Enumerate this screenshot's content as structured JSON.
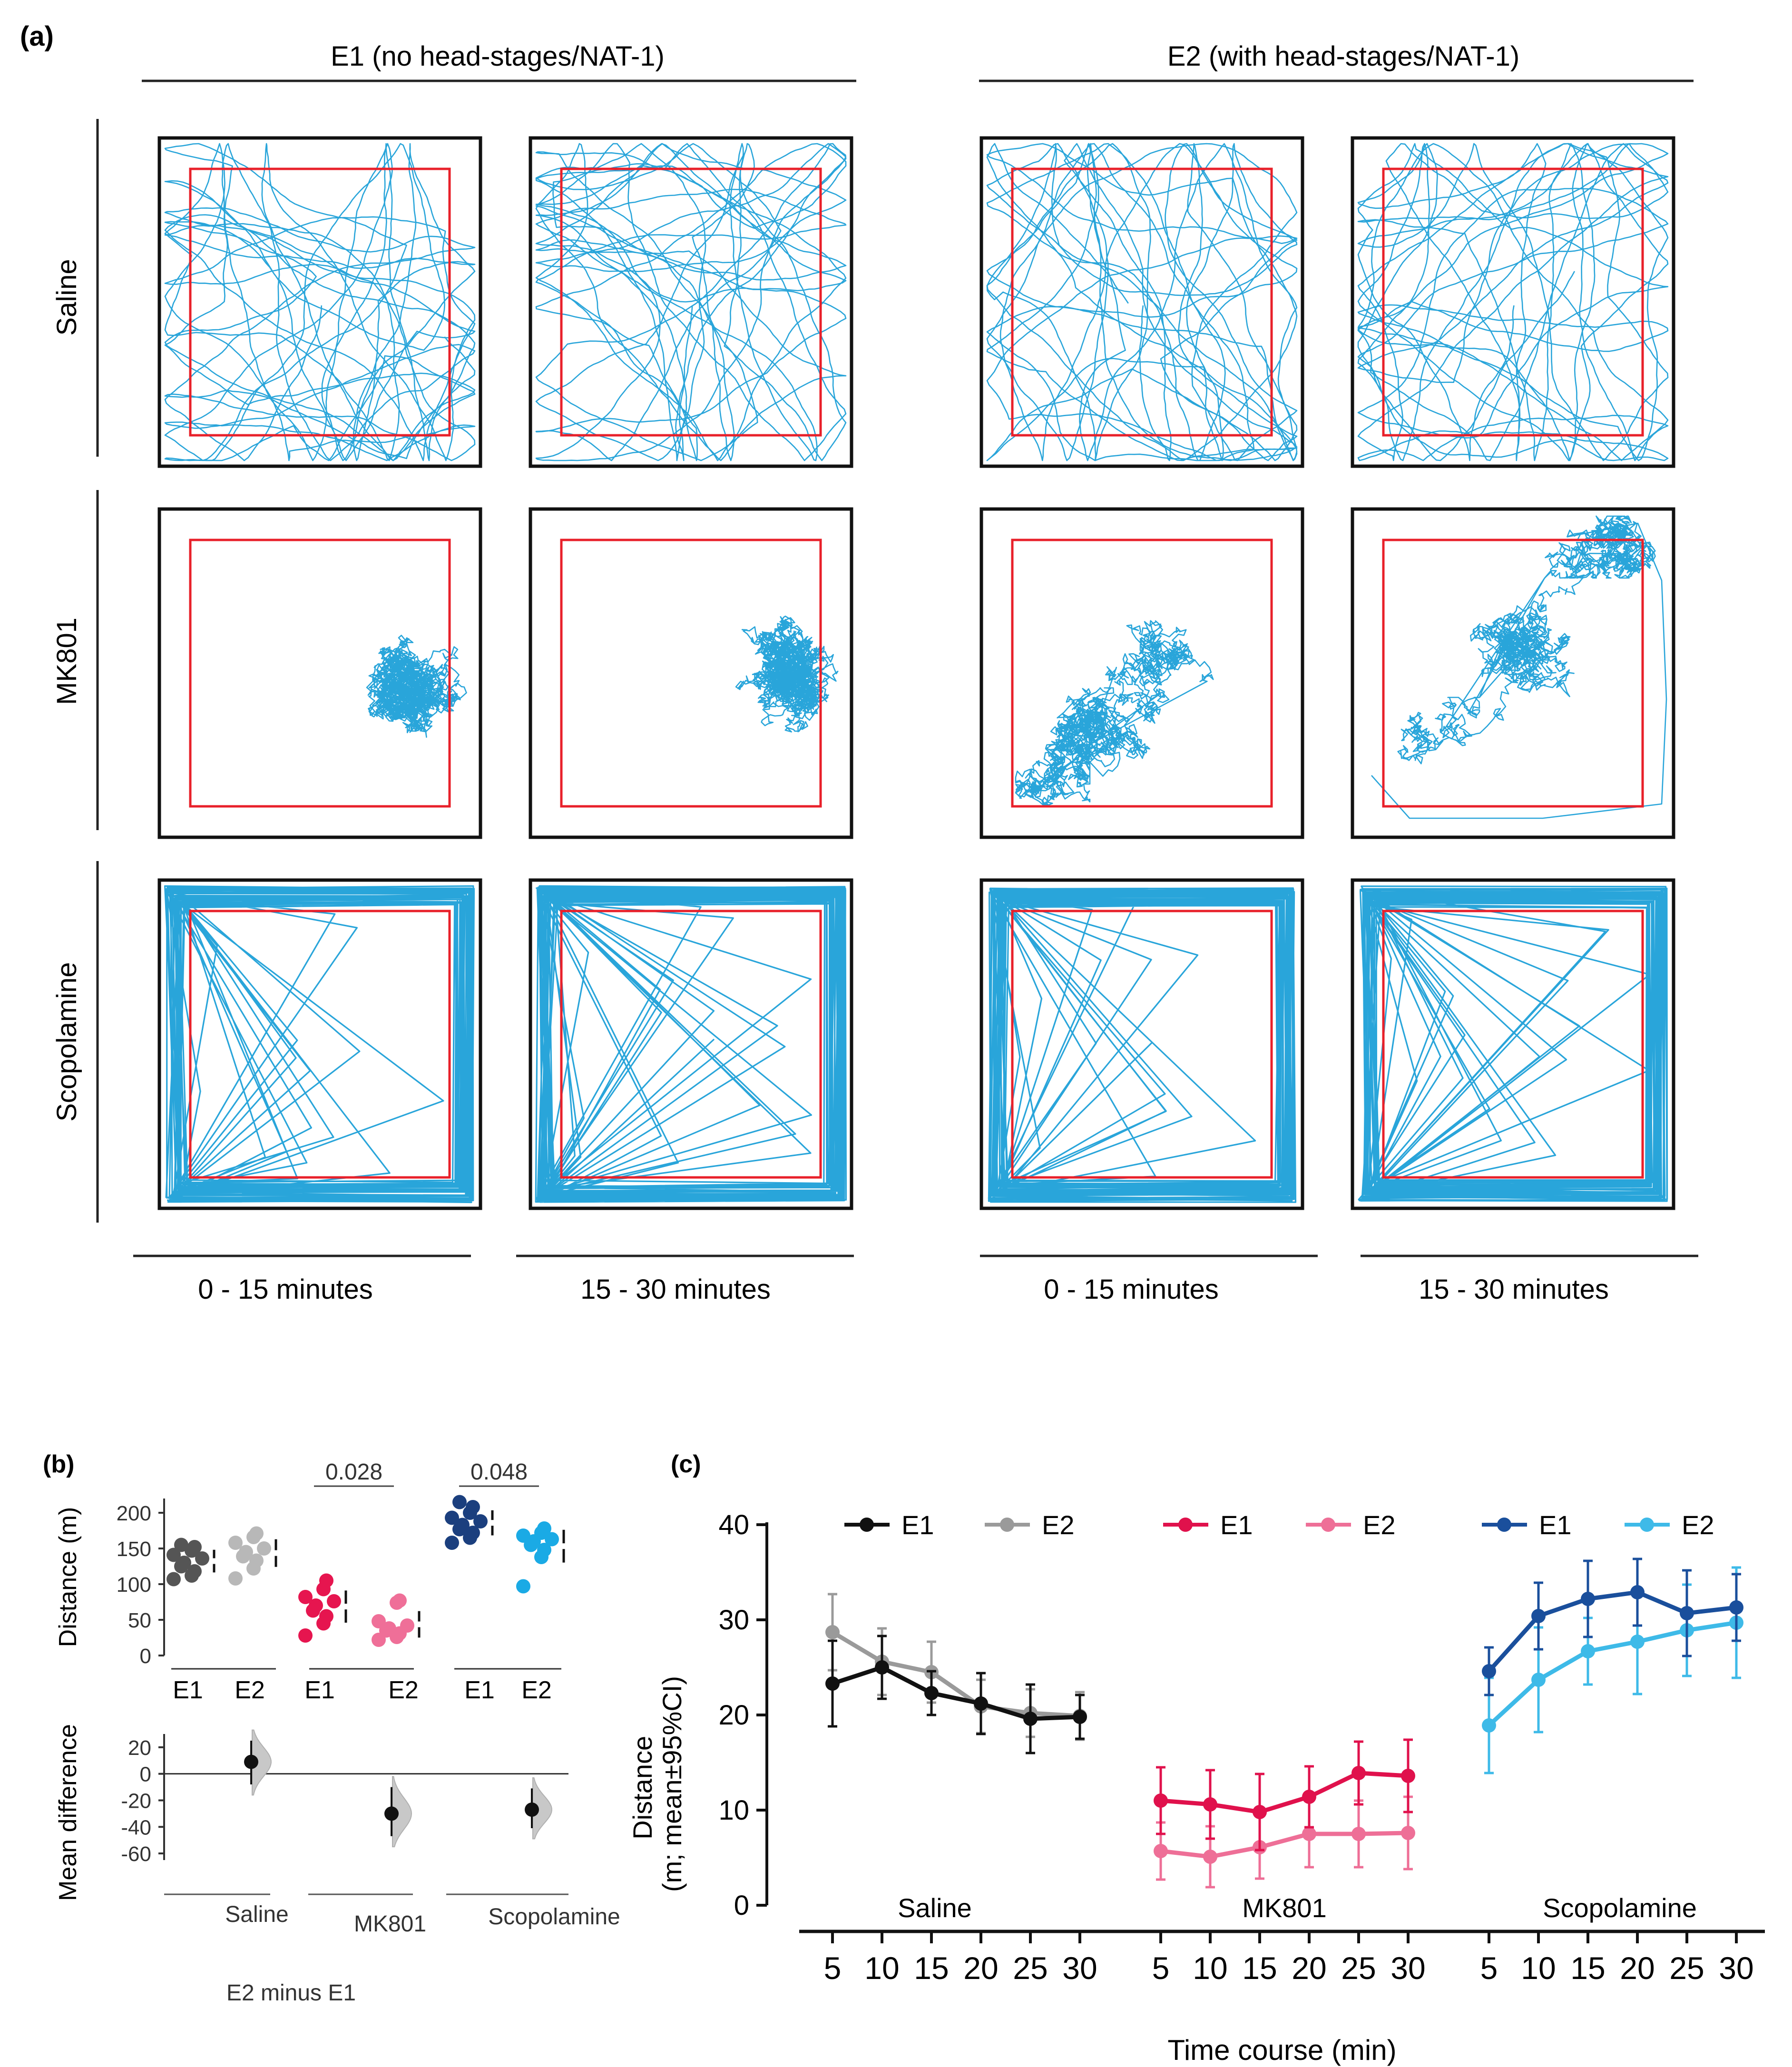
{
  "panel_a": {
    "label": "(a)",
    "group_headers": [
      "E1 (no head-stages/NAT-1)",
      "E2 (with head-stages/NAT-1)"
    ],
    "row_labels": [
      "Saline",
      "MK801",
      "Scopolamine"
    ],
    "time_labels": [
      "0 - 15 minutes",
      "15 - 30 minutes",
      "0 - 15 minutes",
      "15 - 30 minutes"
    ],
    "colors": {
      "track": "#1ea0d8",
      "zone": "#e8202a",
      "arena": "#111111"
    },
    "trace_patterns": {
      "Saline": "dense random criss-cross paths over whole arena",
      "MK801": "localized dense tangle, right side in E1, central-lower in E2",
      "Scopolamine": "heavy thigmotaxis along walls with few centre crossings"
    }
  },
  "panel_b": {
    "label": "(b)",
    "chart_data": [
      {
        "type": "scatter",
        "ylabel": "Distance (m)",
        "ylim": [
          0,
          220
        ],
        "yticks": [
          "0",
          "50",
          "100",
          "150",
          "200"
        ],
        "group_labels": [
          "E1",
          "E2",
          "E1",
          "E2",
          "E1",
          "E2"
        ],
        "p_values": [
          "0.028",
          "0.048"
        ],
        "series": [
          {
            "name": "Saline E1",
            "color": "#555555",
            "values": [
              107,
              112,
              118,
              125,
              130,
              136,
              141,
              147,
              152,
              155
            ]
          },
          {
            "name": "Saline E2",
            "color": "#b8b8b8",
            "values": [
              108,
              122,
              133,
              139,
              145,
              150,
              158,
              166,
              171
            ]
          },
          {
            "name": "MK801 E1",
            "color": "#e6154f",
            "values": [
              28,
              45,
              55,
              63,
              70,
              76,
              82,
              93,
              105
            ]
          },
          {
            "name": "MK801 E2",
            "color": "#ef6f98",
            "values": [
              22,
              26,
              31,
              35,
              38,
              42,
              48,
              74,
              77
            ]
          },
          {
            "name": "Scopolamine E1",
            "color": "#1b3f7e",
            "values": [
              158,
              165,
              172,
              177,
              183,
              188,
              193,
              200,
              208,
              215
            ]
          },
          {
            "name": "Scopolamine E2",
            "color": "#1aaae5",
            "values": [
              97,
              138,
              148,
              155,
              160,
              163,
              168,
              172,
              178
            ]
          }
        ]
      },
      {
        "type": "scatter",
        "ylabel": "Mean difference",
        "ylim": [
          -65,
          30
        ],
        "yticks": [
          "20",
          "0",
          "-20",
          "-40",
          "-60"
        ],
        "category_labels": [
          "Saline",
          "MK801",
          "Scopolamine"
        ],
        "xlabel": "E2 minus E1",
        "mean_diffs": [
          9,
          -30,
          -27
        ],
        "ci_low": [
          -8,
          -47,
          -41
        ],
        "ci_high": [
          25,
          -10,
          -11
        ]
      }
    ]
  },
  "panel_c": {
    "label": "(c)",
    "chart_data": {
      "type": "line",
      "ylabel": "Distance\n(m; mean±95%CI)",
      "xlabel": "Time course (min)",
      "ylim": [
        0,
        40
      ],
      "yticks": [
        "0",
        "10",
        "20",
        "30",
        "40"
      ],
      "x": [
        5,
        10,
        15,
        20,
        25,
        30
      ],
      "xtick_labels": [
        "5",
        "10",
        "15",
        "20",
        "25",
        "30"
      ],
      "group_labels": [
        "Saline",
        "MK801",
        "Scopolamine"
      ],
      "legend_labels": [
        "E1",
        "E2",
        "E1",
        "E2",
        "E1",
        "E2"
      ],
      "series": [
        {
          "name": "Saline E1",
          "group": 0,
          "color": "#111111",
          "values": [
            23.3,
            25.0,
            22.3,
            21.2,
            19.6,
            19.8
          ],
          "ci": [
            4.5,
            3.3,
            2.3,
            3.2,
            3.6,
            2.3
          ]
        },
        {
          "name": "Saline E2",
          "group": 0,
          "color": "#9a9a9a",
          "values": [
            28.7,
            25.6,
            24.5,
            20.9,
            20.2,
            19.9
          ],
          "ci": [
            4.0,
            3.5,
            3.2,
            2.8,
            2.5,
            2.5
          ]
        },
        {
          "name": "MK801 E1",
          "group": 1,
          "color": "#e0114c",
          "values": [
            11.0,
            10.6,
            9.8,
            11.4,
            13.9,
            13.6
          ],
          "ci": [
            3.5,
            3.6,
            4.0,
            3.2,
            3.3,
            3.8
          ]
        },
        {
          "name": "MK801 E2",
          "group": 1,
          "color": "#ee6f97",
          "values": [
            5.7,
            5.1,
            6.1,
            7.5,
            7.5,
            7.6
          ],
          "ci": [
            3.0,
            3.2,
            3.3,
            3.5,
            3.5,
            3.8
          ]
        },
        {
          "name": "Scopolamine E1",
          "group": 2,
          "color": "#1a4f9c",
          "values": [
            24.6,
            30.4,
            32.2,
            32.9,
            30.7,
            31.3
          ],
          "ci": [
            2.5,
            3.5,
            4.0,
            3.5,
            4.5,
            3.5
          ]
        },
        {
          "name": "Scopolamine E2",
          "group": 2,
          "color": "#3ebae8",
          "values": [
            18.9,
            23.7,
            26.7,
            27.7,
            28.9,
            29.7
          ],
          "ci": [
            5.0,
            5.5,
            3.5,
            5.5,
            4.8,
            5.8
          ]
        }
      ]
    }
  }
}
